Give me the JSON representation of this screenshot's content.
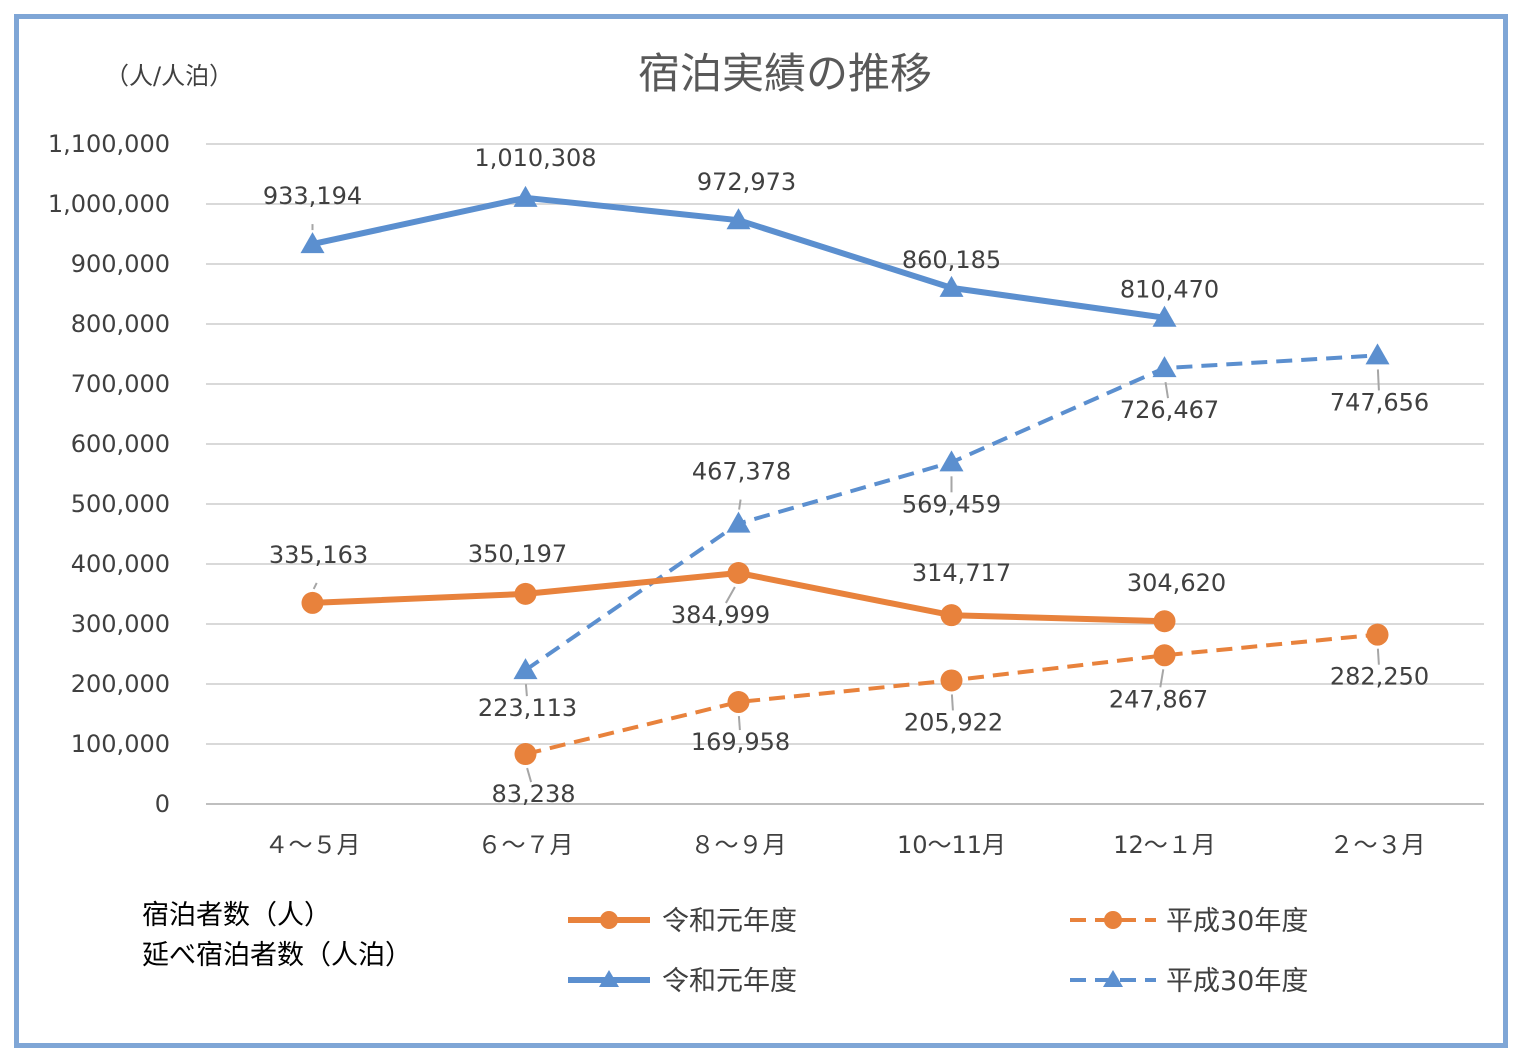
{
  "chart_data": {
    "type": "line",
    "title": "宿泊実績の推移",
    "unit_label": "（人/人泊）",
    "categories": [
      "４～５月",
      "６～７月",
      "８～９月",
      "10～11月",
      "12～１月",
      "２～３月"
    ],
    "y_ticks": [
      "0",
      "100,000",
      "200,000",
      "300,000",
      "400,000",
      "500,000",
      "600,000",
      "700,000",
      "800,000",
      "900,000",
      "1,000,000",
      "1,100,000"
    ],
    "ylim": [
      0,
      1100000
    ],
    "grid": true,
    "legend_notes": [
      "宿泊者数（人）",
      "延べ宿泊者数（人泊）"
    ],
    "series": [
      {
        "name": "令和元年度",
        "color": "#5b8fcf",
        "dashed": false,
        "marker": "triangle",
        "values": [
          933194,
          1010308,
          972973,
          860185,
          810470,
          null
        ],
        "labels": [
          "933,194",
          "1,010,308",
          "972,973",
          "860,185",
          "810,470",
          ""
        ]
      },
      {
        "name": "平成30年度",
        "color": "#5b8fcf",
        "dashed": true,
        "marker": "triangle",
        "values": [
          null,
          223113,
          467378,
          569459,
          726467,
          747656
        ],
        "labels": [
          "",
          "223,113",
          "467,378",
          "569,459",
          "726,467",
          "747,656"
        ]
      },
      {
        "name": "令和元年度",
        "color": "#e8823c",
        "dashed": false,
        "marker": "circle",
        "values": [
          335163,
          350197,
          384999,
          314717,
          304620,
          null
        ],
        "labels": [
          "335,163",
          "350,197",
          "384,999",
          "314,717",
          "304,620",
          ""
        ]
      },
      {
        "name": "平成30年度",
        "color": "#e8823c",
        "dashed": true,
        "marker": "circle",
        "values": [
          null,
          83238,
          169958,
          205922,
          247867,
          282250
        ],
        "labels": [
          "",
          "83,238",
          "169,958",
          "205,922",
          "247,867",
          "282,250"
        ]
      }
    ]
  }
}
